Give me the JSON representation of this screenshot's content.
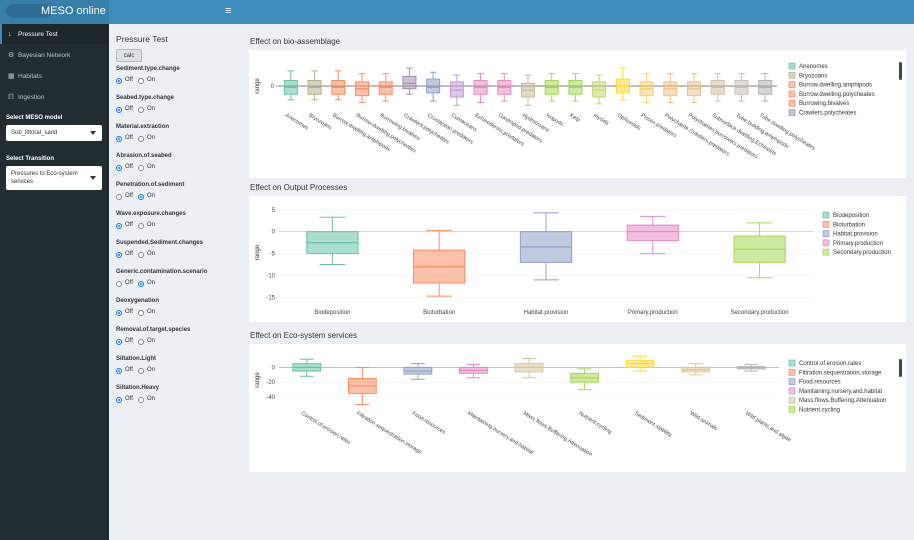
{
  "header": {
    "title": "MESO online",
    "menu_toggle": "≡"
  },
  "sidebar": {
    "items": [
      {
        "label": "Pressure Test",
        "icon": "arrow-down-icon",
        "glyph": "↓",
        "active": true
      },
      {
        "label": "Bayesian Network",
        "icon": "gear-icon",
        "glyph": "⚙",
        "active": false
      },
      {
        "label": "Habitats",
        "icon": "table-icon",
        "glyph": "▦",
        "active": false
      },
      {
        "label": "Ingestion",
        "icon": "cutlery-icon",
        "glyph": "ℿ",
        "active": false
      }
    ],
    "model_label": "Select MESO model",
    "model_value": "Sub_littoral_sand",
    "transition_label": "Select Transition",
    "transition_value": "Pressures to Eco-system services"
  },
  "controls": {
    "title": "Pressure Test",
    "calc_label": "calc",
    "off_label": "Off",
    "on_label": "On",
    "pressures": [
      {
        "name": "Sediment.type.change",
        "selected": "Off"
      },
      {
        "name": "Seabed.type.change",
        "selected": "Off"
      },
      {
        "name": "Material.extraction",
        "selected": "Off"
      },
      {
        "name": "Abrasion.of.seabed",
        "selected": "Off"
      },
      {
        "name": "Penetration.of.sediment",
        "selected": "On"
      },
      {
        "name": "Wave.exposure.changes",
        "selected": "Off"
      },
      {
        "name": "Suspended.Sediment.changes",
        "selected": "Off"
      },
      {
        "name": "Generic.contamination.scenario",
        "selected": "On"
      },
      {
        "name": "Deoxygenation",
        "selected": "Off"
      },
      {
        "name": "Removal.of.target.species",
        "selected": "Off"
      },
      {
        "name": "Siltation.Light",
        "selected": "Off"
      },
      {
        "name": "Siltation.Heavy",
        "selected": "Off"
      }
    ]
  },
  "charts": {
    "bio": {
      "title": "Effect on bio-assemblage"
    },
    "out": {
      "title": "Effect on Output Processes"
    },
    "eco": {
      "title": "Effect on Eco-system services"
    }
  },
  "chart_data": [
    {
      "type": "box",
      "title": "Effect on bio-assemblage",
      "ylabel": "range",
      "categories": [
        "Anenomes",
        "Bryozoans",
        "Burrow.dwelling.amphipods",
        "Burrow.dwelling.polycheates",
        "Burrowing.bivalves",
        "Crawlers.polycheates",
        "Crustacean.predators",
        "Cumaceans",
        "Echinoderms.predators",
        "Gastropod.predators",
        "Hydroizoans",
        "Isopods",
        "Kelp",
        "mysids",
        "Ophiuroids",
        "Pisces.predators",
        "Polychaete.Crawlers.predators",
        "Polychaetes.burrowers.predators",
        "Subsurface.dwelling.Echinoids",
        "Tube.building.amphipods",
        "Tube.dwelling.polycheates"
      ],
      "colors": [
        "#66c2a5",
        "#b3b38a",
        "#fc8d62",
        "#fc8d62",
        "#fc8d62",
        "#a68fb0",
        "#8da0cb",
        "#c39bd3",
        "#e78ac3",
        "#e78ac3",
        "#c9b99a",
        "#a6d854",
        "#a6d854",
        "#c5d96b",
        "#ffd92f",
        "#f5cf6b",
        "#f0c28a",
        "#e5c494",
        "#d8c0a8",
        "#c8c0b8",
        "#b3b3b3"
      ],
      "boxes": [
        [
          -10,
          -6,
          -1,
          4,
          11
        ],
        [
          -10,
          -6,
          -1,
          4,
          11
        ],
        [
          -10,
          -6,
          -1,
          4,
          11
        ],
        [
          -12,
          -7,
          -2,
          3,
          9
        ],
        [
          -11,
          -6,
          -1,
          3,
          9
        ],
        [
          -6,
          -2,
          2,
          7,
          13
        ],
        [
          -11,
          -5,
          -1,
          5,
          10
        ],
        [
          -14,
          -8,
          -3,
          3,
          8
        ],
        [
          -12,
          -6,
          -1,
          4,
          9
        ],
        [
          -11,
          -6,
          -1,
          4,
          9
        ],
        [
          -14,
          -8,
          -3,
          2,
          8
        ],
        [
          -11,
          -6,
          -1,
          4,
          9
        ],
        [
          -11,
          -6,
          -1,
          4,
          9
        ],
        [
          -13,
          -8,
          -3,
          3,
          8
        ],
        [
          -10,
          -5,
          0,
          5,
          13
        ],
        [
          -12,
          -7,
          -2,
          3,
          9
        ],
        [
          -12,
          -7,
          -2,
          3,
          9
        ],
        [
          -12,
          -7,
          -2,
          3,
          9
        ],
        [
          -11,
          -6,
          -1,
          4,
          9
        ],
        [
          -11,
          -6,
          -1,
          4,
          9
        ],
        [
          -11,
          -6,
          -1,
          4,
          9
        ]
      ],
      "legend": [
        "Anenomes",
        "Bryozoans",
        "Burrow.dwelling.amphipods",
        "Burrow.dwelling.polycheates",
        "Burrowing.bivalves",
        "Crawlers.polycheates"
      ],
      "ylim": [
        -16,
        16
      ]
    },
    {
      "type": "box",
      "title": "Effect on Output Processes",
      "ylabel": "range",
      "categories": [
        "Biodeposition",
        "Bioturbation",
        "Habitat.provision",
        "Primary.production",
        "Secondary.production"
      ],
      "colors": [
        "#66c2a5",
        "#fc8d62",
        "#8da0cb",
        "#e78ac3",
        "#a6d854"
      ],
      "boxes": [
        [
          -7.5,
          -5,
          -2.5,
          0,
          3.3
        ],
        [
          -14.7,
          -11.7,
          -8,
          -4.2,
          0.3
        ],
        [
          -11,
          -7,
          -3.5,
          0,
          4.3
        ],
        [
          -5,
          -2,
          0,
          1.5,
          3.5
        ],
        [
          -10.5,
          -7,
          -4,
          -1,
          2
        ]
      ],
      "legend": [
        "Biodeposition",
        "Bioturbation",
        "Habitat.provision",
        "Primary.production",
        "Secondary.production"
      ],
      "yticks": [
        5,
        0,
        -5,
        -10,
        -15
      ],
      "ylim": [
        -16.5,
        7
      ]
    },
    {
      "type": "box",
      "title": "Effect on Eco-system services",
      "ylabel": "range",
      "categories": [
        "Control.of.erosion.rates",
        "Filtration.sequestration.storage",
        "Food.resources",
        "Maintaining.nursery.and.habitat",
        "Mass.flows.Buffering.Attenuation",
        "Nutrient.cycling",
        "Sediment.stability",
        "Wild.animals",
        "Wild.plants.and.algae"
      ],
      "colors": [
        "#66c2a5",
        "#fc8d62",
        "#8da0cb",
        "#e78ac3",
        "#d8c49a",
        "#a6d854",
        "#ffd92f",
        "#e5c494",
        "#b3b3b3"
      ],
      "boxes": [
        [
          -12,
          -5,
          0,
          5,
          11
        ],
        [
          -50,
          -35,
          -25,
          -15,
          0
        ],
        [
          -16,
          -9,
          -5,
          0,
          5
        ],
        [
          -14,
          -8,
          -4,
          0,
          4
        ],
        [
          -14,
          -6,
          0,
          5,
          12
        ],
        [
          -30,
          -20,
          -14,
          -8,
          -2
        ],
        [
          -5,
          0,
          5,
          9,
          15
        ],
        [
          -10,
          -6,
          -3,
          0,
          5
        ],
        [
          -5,
          -2,
          0,
          1,
          4
        ]
      ],
      "legend": [
        "Control.of.erosion.rates",
        "Filtration.sequestration.storage",
        "Food.resources",
        "Maintaining.nursery.and.habitat",
        "Mass.flows.Buffering.Attenuation",
        "Nutrient.cycling"
      ],
      "yticks": [
        0,
        -20,
        -40
      ],
      "ylim": [
        -52,
        18
      ]
    }
  ]
}
